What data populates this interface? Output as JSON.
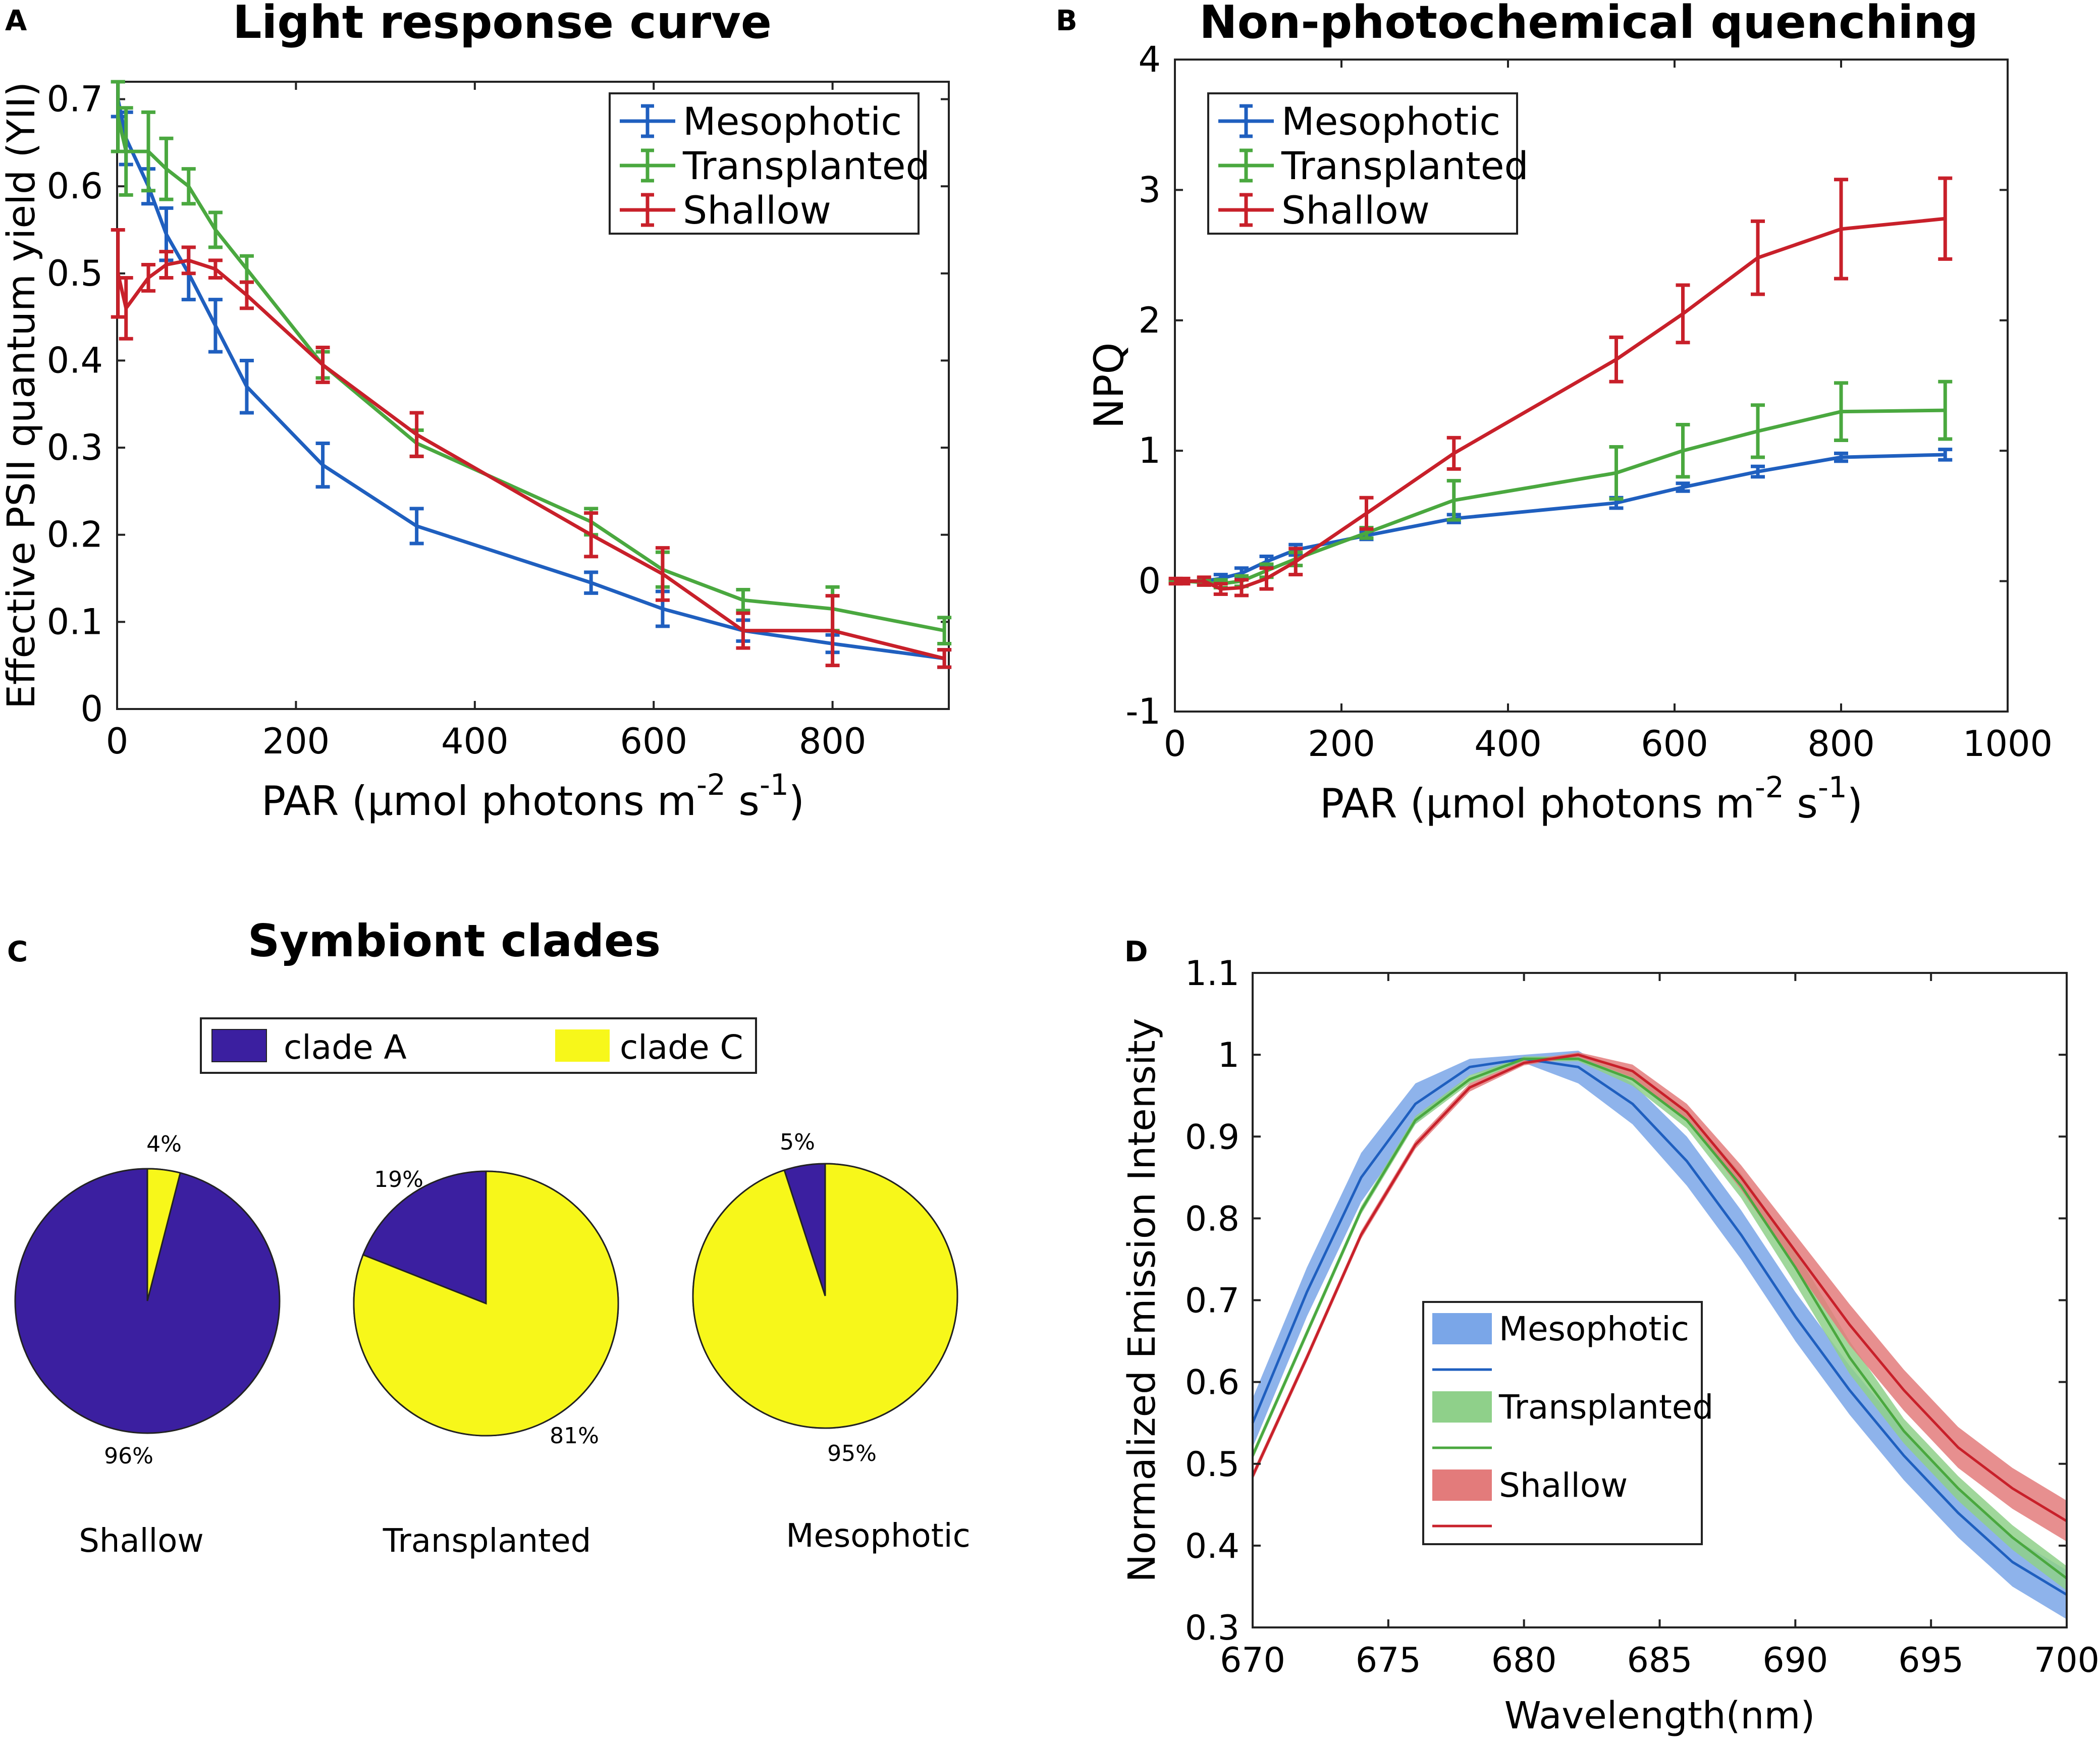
{
  "colors": {
    "mesophotic": "#1f5fbf",
    "transplanted": "#4aa83f",
    "shallow": "#c8202a",
    "clade_a": "#3b1fa0",
    "clade_c": "#f7f71a",
    "band_mesophotic": "#7aa6e8",
    "band_transplanted": "#8fd08a",
    "band_shallow": "#e37b7b"
  },
  "chart_data": [
    {
      "panel": "A",
      "type": "line",
      "title": "Light response curve",
      "xlabel": "PAR (μmol photons m",
      "xlabel_sup1": "-2",
      "xlabel_mid": " s",
      "xlabel_sup2": "-1",
      "xlabel_end": ")",
      "ylabel": "Effective PSII quantum yield (YII)",
      "xlim": [
        0,
        930
      ],
      "ylim": [
        0,
        0.72
      ],
      "xticks": [
        0,
        200,
        400,
        600,
        800
      ],
      "xtick_labels": [
        "0",
        "200",
        "400",
        "600",
        "800"
      ],
      "yticks": [
        0,
        0.1,
        0.2,
        0.3,
        0.4,
        0.5,
        0.6,
        0.7
      ],
      "ytick_labels": [
        "0",
        "0.1",
        "0.2",
        "0.3",
        "0.4",
        "0.5",
        "0.6",
        "0.7"
      ],
      "legend": [
        "Mesophotic",
        "Transplanted",
        "Shallow"
      ],
      "legend_position": "top-right",
      "x": [
        1,
        10,
        35,
        55,
        80,
        110,
        145,
        230,
        335,
        530,
        610,
        700,
        800,
        925
      ],
      "series": [
        {
          "name": "Mesophotic",
          "color_key": "mesophotic",
          "values": [
            0.7,
            0.655,
            0.6,
            0.545,
            0.5,
            0.44,
            0.37,
            0.28,
            0.21,
            0.145,
            0.115,
            0.09,
            0.075,
            0.058
          ],
          "errors": [
            0.02,
            0.03,
            0.02,
            0.03,
            0.03,
            0.03,
            0.03,
            0.025,
            0.02,
            0.012,
            0.02,
            0.012,
            0.01,
            0.01
          ]
        },
        {
          "name": "Transplanted",
          "color_key": "transplanted",
          "values": [
            0.68,
            0.64,
            0.64,
            0.62,
            0.6,
            0.55,
            0.505,
            0.395,
            0.305,
            0.215,
            0.16,
            0.125,
            0.115,
            0.09
          ],
          "errors": [
            0.04,
            0.05,
            0.045,
            0.035,
            0.02,
            0.02,
            0.015,
            0.015,
            0.015,
            0.015,
            0.02,
            0.012,
            0.025,
            0.015
          ]
        },
        {
          "name": "Shallow",
          "color_key": "shallow",
          "values": [
            0.5,
            0.46,
            0.495,
            0.51,
            0.515,
            0.505,
            0.475,
            0.395,
            0.315,
            0.2,
            0.155,
            0.09,
            0.09,
            0.058
          ],
          "errors": [
            0.05,
            0.035,
            0.015,
            0.015,
            0.015,
            0.01,
            0.015,
            0.02,
            0.025,
            0.025,
            0.03,
            0.02,
            0.04,
            0.01
          ]
        }
      ]
    },
    {
      "panel": "B",
      "type": "line",
      "title": "Non-photochemical quenching",
      "xlabel": "PAR (μmol photons m",
      "xlabel_sup1": "-2",
      "xlabel_mid": " s",
      "xlabel_sup2": "-1",
      "xlabel_end": ")",
      "ylabel": "NPQ",
      "xlim": [
        0,
        1000
      ],
      "ylim": [
        -1,
        4
      ],
      "xticks": [
        0,
        200,
        400,
        600,
        800,
        1000
      ],
      "xtick_labels": [
        "0",
        "200",
        "400",
        "600",
        "800",
        "1000"
      ],
      "yticks": [
        -1,
        0,
        1,
        2,
        3,
        4
      ],
      "ytick_labels": [
        "-1",
        "0",
        "1",
        "2",
        "3",
        "4"
      ],
      "legend": [
        "Mesophotic",
        "Transplanted",
        "Shallow"
      ],
      "legend_position": "top-left",
      "x": [
        1,
        10,
        35,
        55,
        80,
        110,
        145,
        230,
        335,
        530,
        610,
        700,
        800,
        925
      ],
      "series": [
        {
          "name": "Mesophotic",
          "color_key": "mesophotic",
          "values": [
            0.0,
            0.0,
            0.0,
            0.02,
            0.06,
            0.15,
            0.24,
            0.35,
            0.48,
            0.6,
            0.72,
            0.84,
            0.95,
            0.97
          ],
          "errors": [
            0.01,
            0.01,
            0.02,
            0.03,
            0.04,
            0.04,
            0.04,
            0.03,
            0.03,
            0.04,
            0.03,
            0.04,
            0.03,
            0.04
          ]
        },
        {
          "name": "Transplanted",
          "color_key": "transplanted",
          "values": [
            0.0,
            0.0,
            -0.01,
            -0.02,
            0.0,
            0.08,
            0.17,
            0.37,
            0.62,
            0.83,
            1.0,
            1.15,
            1.3,
            1.31
          ],
          "errors": [
            0.01,
            0.01,
            0.02,
            0.03,
            0.04,
            0.05,
            0.05,
            0.04,
            0.15,
            0.2,
            0.2,
            0.2,
            0.22,
            0.22
          ]
        },
        {
          "name": "Shallow",
          "color_key": "shallow",
          "values": [
            0.0,
            0.0,
            0.0,
            -0.06,
            -0.05,
            0.02,
            0.15,
            0.52,
            0.98,
            1.7,
            2.05,
            2.48,
            2.7,
            2.78
          ],
          "errors": [
            0.02,
            0.02,
            0.03,
            0.04,
            0.06,
            0.08,
            0.1,
            0.12,
            0.12,
            0.17,
            0.22,
            0.28,
            0.38,
            0.31
          ]
        }
      ]
    },
    {
      "panel": "C",
      "type": "pie",
      "title": "Symbiont clades",
      "legend": [
        "clade A",
        "clade C"
      ],
      "pies": [
        {
          "name": "Shallow",
          "clade_a": 96,
          "clade_c": 4,
          "label_a": "96%",
          "label_c": "4%"
        },
        {
          "name": "Transplanted",
          "clade_a": 19,
          "clade_c": 81,
          "label_a": "19%",
          "label_c": "81%"
        },
        {
          "name": "Mesophotic",
          "clade_a": 5,
          "clade_c": 95,
          "label_a": "5%",
          "label_c": "95%"
        }
      ]
    },
    {
      "panel": "D",
      "type": "area",
      "title": "",
      "xlabel": "Wavelength(nm)",
      "ylabel": "Normalized Emission Intensity",
      "xlim": [
        670,
        700
      ],
      "ylim": [
        0.3,
        1.1
      ],
      "xticks": [
        670,
        675,
        680,
        685,
        690,
        695,
        700
      ],
      "xtick_labels": [
        "670",
        "675",
        "680",
        "685",
        "690",
        "695",
        "700"
      ],
      "yticks": [
        0.3,
        0.4,
        0.5,
        0.6,
        0.7,
        0.8,
        0.9,
        1.0,
        1.1
      ],
      "ytick_labels": [
        "0.3",
        "0.4",
        "0.5",
        "0.6",
        "0.7",
        "0.8",
        "0.9",
        "1",
        "1.1"
      ],
      "legend": [
        "Mesophotic",
        "Transplanted",
        "Shallow"
      ],
      "legend_position": "bottom-center",
      "x": [
        670,
        672,
        674,
        676,
        678,
        680,
        682,
        684,
        686,
        688,
        690,
        692,
        694,
        696,
        698,
        700
      ],
      "series": [
        {
          "name": "Mesophotic",
          "color_key": "mesophotic",
          "values": [
            0.55,
            0.71,
            0.85,
            0.94,
            0.985,
            0.995,
            0.985,
            0.94,
            0.87,
            0.78,
            0.68,
            0.59,
            0.51,
            0.44,
            0.38,
            0.34
          ],
          "band": [
            0.03,
            0.03,
            0.03,
            0.025,
            0.01,
            0.005,
            0.02,
            0.025,
            0.03,
            0.03,
            0.03,
            0.03,
            0.03,
            0.03,
            0.03,
            0.03
          ]
        },
        {
          "name": "Transplanted",
          "color_key": "transplanted",
          "values": [
            0.51,
            0.66,
            0.81,
            0.92,
            0.97,
            0.995,
            0.995,
            0.97,
            0.92,
            0.84,
            0.74,
            0.63,
            0.54,
            0.47,
            0.41,
            0.36
          ],
          "band": [
            0.005,
            0.005,
            0.005,
            0.005,
            0.005,
            0.003,
            0.003,
            0.008,
            0.01,
            0.015,
            0.02,
            0.02,
            0.015,
            0.015,
            0.015,
            0.015
          ]
        },
        {
          "name": "Shallow",
          "color_key": "shallow",
          "values": [
            0.485,
            0.63,
            0.78,
            0.89,
            0.96,
            0.99,
            1.0,
            0.98,
            0.93,
            0.85,
            0.76,
            0.67,
            0.59,
            0.52,
            0.47,
            0.43
          ],
          "band": [
            0.005,
            0.005,
            0.005,
            0.005,
            0.005,
            0.003,
            0.003,
            0.008,
            0.01,
            0.015,
            0.02,
            0.025,
            0.025,
            0.025,
            0.025,
            0.025
          ]
        }
      ]
    }
  ]
}
